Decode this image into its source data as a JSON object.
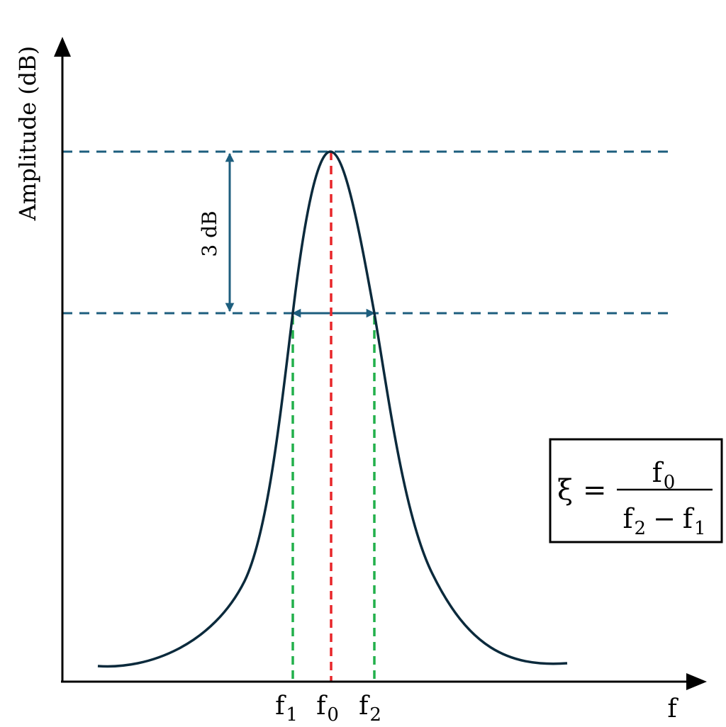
{
  "axes": {
    "y_label": "Amplitude (dB)",
    "x_label": "f"
  },
  "annotations": {
    "db_gap_label": "3 dB",
    "f1_base": "f",
    "f1_sub": "1",
    "f0_base": "f",
    "f0_sub": "0",
    "f2_base": "f",
    "f2_sub": "2"
  },
  "formula": {
    "lhs": "ξ",
    "equals": "=",
    "numerator_base": "f",
    "numerator_sub": "0",
    "denominator_a_base": "f",
    "denominator_a_sub": "2",
    "minus": "−",
    "denominator_b_base": "f",
    "denominator_b_sub": "1"
  },
  "colors": {
    "curve": "#0b2a3c",
    "reference_lines": "#1d5e7e",
    "center_line": "#e8262a",
    "bandwidth_lines": "#22b04b",
    "axis": "#000000"
  }
}
